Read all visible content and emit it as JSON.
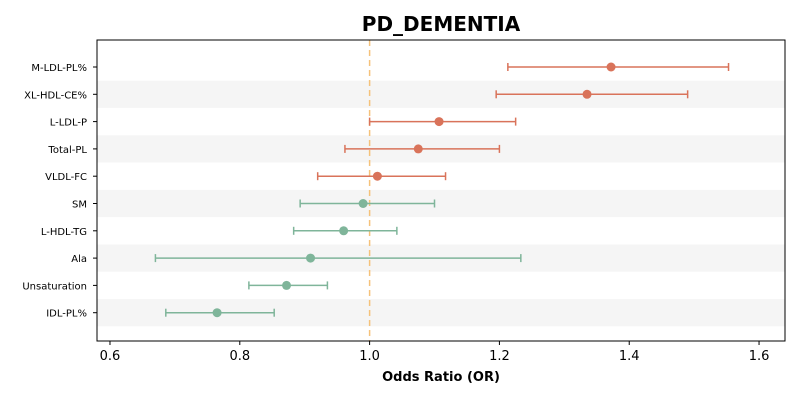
{
  "chart_data": {
    "type": "forest",
    "title": "PD_DEMENTIA",
    "xlabel": "Odds Ratio (OR)",
    "ylabel": "",
    "xlim": [
      0.58,
      1.64
    ],
    "xticks": [
      0.6,
      0.8,
      1.0,
      1.2,
      1.4,
      1.6
    ],
    "xtick_labels": [
      "0.6",
      "0.8",
      "1.0",
      "1.2",
      "1.4",
      "1.6"
    ],
    "reference_line": 1.0,
    "grid": false,
    "alternating_row_bands": true,
    "colors": {
      "risk": "#d9735a",
      "protective": "#7fb59a",
      "reference": "#f5c27a",
      "band": "#f5f5f5"
    },
    "rows": [
      {
        "label": "M-LDL-PL%",
        "or": 1.372,
        "lower": 1.213,
        "upper": 1.553,
        "group": "risk"
      },
      {
        "label": "XL-HDL-CE%",
        "or": 1.335,
        "lower": 1.195,
        "upper": 1.49,
        "group": "risk"
      },
      {
        "label": "L-LDL-P",
        "or": 1.107,
        "lower": 1.0,
        "upper": 1.225,
        "group": "risk"
      },
      {
        "label": "Total-PL",
        "or": 1.075,
        "lower": 0.962,
        "upper": 1.2,
        "group": "risk"
      },
      {
        "label": "VLDL-FC",
        "or": 1.012,
        "lower": 0.92,
        "upper": 1.117,
        "group": "risk"
      },
      {
        "label": "SM",
        "or": 0.99,
        "lower": 0.893,
        "upper": 1.1,
        "group": "protective"
      },
      {
        "label": "L-HDL-TG",
        "or": 0.96,
        "lower": 0.883,
        "upper": 1.042,
        "group": "protective"
      },
      {
        "label": "Ala",
        "or": 0.909,
        "lower": 0.67,
        "upper": 1.233,
        "group": "protective"
      },
      {
        "label": "Unsaturation",
        "or": 0.872,
        "lower": 0.814,
        "upper": 0.935,
        "group": "protective"
      },
      {
        "label": "IDL-PL%",
        "or": 0.765,
        "lower": 0.686,
        "upper": 0.853,
        "group": "protective"
      }
    ]
  }
}
